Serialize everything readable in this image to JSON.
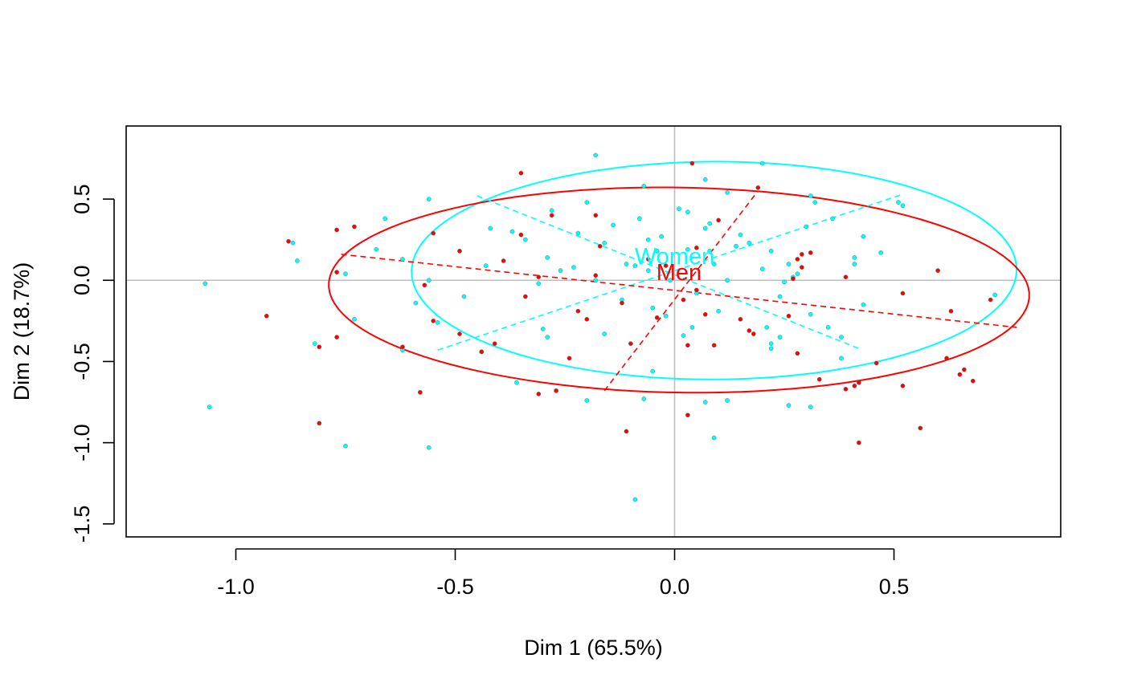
{
  "chart_data": {
    "type": "scatter",
    "title": "",
    "xlabel": "Dim 1 (65.5%)",
    "ylabel": "Dim 2 (18.7%)",
    "xlim": [
      -1.25,
      0.88
    ],
    "ylim": [
      -1.58,
      0.95
    ],
    "x_ticks": [
      -1.0,
      -0.5,
      0.0,
      0.5
    ],
    "x_tick_labels": [
      "-1.0",
      "-0.5",
      "0.0",
      "0.5"
    ],
    "y_ticks": [
      -1.5,
      -1.0,
      -0.5,
      0.0,
      0.5
    ],
    "y_tick_labels": [
      "-1.5",
      "-1.0",
      "-0.5",
      "0.0",
      "0.5"
    ],
    "grid": false,
    "reference_lines": {
      "x": 0,
      "y": 0,
      "color": "#bebebe"
    },
    "groups": [
      {
        "name": "Women",
        "color": "#00ffff",
        "label_position": [
          0.0,
          0.15
        ],
        "ellipse": {
          "center": [
            0.09,
            0.06
          ],
          "semi_major": 0.69,
          "semi_minor": 0.67,
          "angle_deg": 9
        },
        "axis_segments": [
          [
            [
              -0.54,
              -0.43
            ],
            [
              0.52,
              0.53
            ]
          ],
          [
            [
              -0.45,
              0.52
            ],
            [
              0.42,
              -0.42
            ]
          ]
        ],
        "points": [
          [
            -1.07,
            -0.02
          ],
          [
            -1.06,
            -0.78
          ],
          [
            -0.86,
            0.12
          ],
          [
            -0.87,
            0.23
          ],
          [
            -0.75,
            0.04
          ],
          [
            -0.82,
            -0.39
          ],
          [
            -0.75,
            -1.02
          ],
          [
            -0.73,
            -0.24
          ],
          [
            -0.68,
            0.19
          ],
          [
            -0.66,
            0.38
          ],
          [
            -0.62,
            0.13
          ],
          [
            -0.62,
            -0.43
          ],
          [
            -0.59,
            -0.14
          ],
          [
            -0.56,
            0.0
          ],
          [
            -0.56,
            -1.03
          ],
          [
            -0.56,
            0.5
          ],
          [
            -0.54,
            -0.26
          ],
          [
            -0.48,
            -0.1
          ],
          [
            -0.44,
            -0.44
          ],
          [
            -0.43,
            0.09
          ],
          [
            -0.42,
            0.32
          ],
          [
            -0.37,
            0.3
          ],
          [
            -0.36,
            -0.63
          ],
          [
            -0.34,
            0.25
          ],
          [
            -0.31,
            -0.02
          ],
          [
            -0.3,
            -0.3
          ],
          [
            -0.29,
            0.14
          ],
          [
            -0.29,
            -0.35
          ],
          [
            -0.28,
            0.43
          ],
          [
            -0.26,
            0.06
          ],
          [
            -0.23,
            0.08
          ],
          [
            -0.22,
            0.29
          ],
          [
            -0.2,
            0.48
          ],
          [
            -0.2,
            -0.74
          ],
          [
            -0.18,
            0.77
          ],
          [
            -0.18,
            0.0
          ],
          [
            -0.16,
            0.23
          ],
          [
            -0.16,
            -0.33
          ],
          [
            -0.14,
            0.34
          ],
          [
            -0.12,
            -0.12
          ],
          [
            -0.11,
            0.1
          ],
          [
            -0.09,
            0.09
          ],
          [
            -0.09,
            -1.35
          ],
          [
            -0.08,
            0.38
          ],
          [
            -0.07,
            0.58
          ],
          [
            -0.07,
            -0.73
          ],
          [
            -0.06,
            0.06
          ],
          [
            -0.06,
            0.25
          ],
          [
            -0.05,
            -0.17
          ],
          [
            -0.05,
            -0.56
          ],
          [
            -0.04,
            0.18
          ],
          [
            -0.03,
            0.27
          ],
          [
            -0.02,
            -0.22
          ],
          [
            -0.01,
            0.0
          ],
          [
            0.01,
            0.44
          ],
          [
            0.02,
            -0.34
          ],
          [
            0.03,
            0.42
          ],
          [
            0.03,
            0.19
          ],
          [
            0.04,
            -0.29
          ],
          [
            0.05,
            -0.08
          ],
          [
            0.07,
            0.62
          ],
          [
            0.07,
            0.32
          ],
          [
            0.07,
            -0.75
          ],
          [
            0.08,
            0.35
          ],
          [
            0.08,
            0.18
          ],
          [
            0.09,
            -0.97
          ],
          [
            0.09,
            0.1
          ],
          [
            0.1,
            -0.19
          ],
          [
            0.12,
            0.0
          ],
          [
            0.12,
            -0.74
          ],
          [
            0.12,
            0.54
          ],
          [
            0.14,
            0.21
          ],
          [
            0.15,
            0.28
          ],
          [
            0.17,
            0.23
          ],
          [
            0.2,
            0.72
          ],
          [
            0.2,
            0.07
          ],
          [
            0.21,
            -0.29
          ],
          [
            0.22,
            0.18
          ],
          [
            0.22,
            -0.39
          ],
          [
            0.22,
            -0.42
          ],
          [
            0.24,
            -0.35
          ],
          [
            0.24,
            -0.1
          ],
          [
            0.25,
            -0.01
          ],
          [
            0.26,
            -0.77
          ],
          [
            0.26,
            0.1
          ],
          [
            0.27,
            0.02
          ],
          [
            0.28,
            0.04
          ],
          [
            0.3,
            0.33
          ],
          [
            0.31,
            0.52
          ],
          [
            0.31,
            -0.21
          ],
          [
            0.31,
            -0.78
          ],
          [
            0.32,
            0.48
          ],
          [
            0.35,
            -0.29
          ],
          [
            0.36,
            0.38
          ],
          [
            0.38,
            -0.35
          ],
          [
            0.38,
            -0.48
          ],
          [
            0.41,
            0.14
          ],
          [
            0.41,
            0.1
          ],
          [
            0.43,
            0.27
          ],
          [
            0.43,
            -0.15
          ],
          [
            0.47,
            0.17
          ],
          [
            0.51,
            0.48
          ],
          [
            0.52,
            0.46
          ],
          [
            0.73,
            -0.09
          ]
        ]
      },
      {
        "name": "Men",
        "color": "#ff0000",
        "label_position": [
          0.01,
          0.05
        ],
        "ellipse": {
          "center": [
            0.01,
            -0.06
          ],
          "semi_major": 0.8,
          "semi_minor": 0.63,
          "angle_deg": -6
        },
        "axis_segments": [
          [
            [
              -0.76,
              0.16
            ],
            [
              0.78,
              -0.29
            ]
          ],
          [
            [
              -0.16,
              -0.68
            ],
            [
              0.19,
              0.55
            ]
          ]
        ],
        "points": [
          [
            -0.93,
            -0.22
          ],
          [
            -0.88,
            0.24
          ],
          [
            -0.81,
            -0.41
          ],
          [
            -0.81,
            -0.88
          ],
          [
            -0.77,
            0.05
          ],
          [
            -0.77,
            0.31
          ],
          [
            -0.77,
            -0.35
          ],
          [
            -0.73,
            0.33
          ],
          [
            -0.62,
            -0.41
          ],
          [
            -0.58,
            -0.69
          ],
          [
            -0.57,
            -0.03
          ],
          [
            -0.55,
            -0.25
          ],
          [
            -0.55,
            0.29
          ],
          [
            -0.49,
            -0.33
          ],
          [
            -0.49,
            0.18
          ],
          [
            -0.44,
            -0.44
          ],
          [
            -0.41,
            -0.39
          ],
          [
            -0.39,
            0.12
          ],
          [
            -0.35,
            0.66
          ],
          [
            -0.35,
            0.28
          ],
          [
            -0.34,
            -0.1
          ],
          [
            -0.31,
            0.02
          ],
          [
            -0.31,
            -0.7
          ],
          [
            -0.28,
            0.4
          ],
          [
            -0.27,
            -0.68
          ],
          [
            -0.24,
            -0.48
          ],
          [
            -0.22,
            -0.19
          ],
          [
            -0.2,
            -0.24
          ],
          [
            -0.18,
            0.4
          ],
          [
            -0.18,
            0.03
          ],
          [
            -0.17,
            0.21
          ],
          [
            -0.12,
            -0.14
          ],
          [
            -0.11,
            -0.93
          ],
          [
            -0.1,
            -0.39
          ],
          [
            -0.06,
            0.13
          ],
          [
            -0.04,
            -0.23
          ],
          [
            -0.02,
            0.09
          ],
          [
            0.02,
            -0.12
          ],
          [
            0.03,
            -0.83
          ],
          [
            0.03,
            -0.4
          ],
          [
            0.04,
            0.72
          ],
          [
            0.05,
            0.2
          ],
          [
            0.05,
            -0.06
          ],
          [
            0.07,
            -0.21
          ],
          [
            0.09,
            -0.4
          ],
          [
            0.1,
            0.37
          ],
          [
            0.15,
            -0.24
          ],
          [
            0.17,
            -0.31
          ],
          [
            0.18,
            -0.33
          ],
          [
            0.19,
            0.57
          ],
          [
            0.26,
            -0.22
          ],
          [
            0.27,
            0.01
          ],
          [
            0.28,
            0.13
          ],
          [
            0.28,
            -0.45
          ],
          [
            0.29,
            0.16
          ],
          [
            0.29,
            0.08
          ],
          [
            0.31,
            0.17
          ],
          [
            0.33,
            -0.61
          ],
          [
            0.39,
            -0.67
          ],
          [
            0.39,
            0.02
          ],
          [
            0.41,
            -0.65
          ],
          [
            0.42,
            -1.0
          ],
          [
            0.42,
            -0.63
          ],
          [
            0.46,
            -0.51
          ],
          [
            0.52,
            -0.08
          ],
          [
            0.52,
            -0.65
          ],
          [
            0.56,
            -0.91
          ],
          [
            0.6,
            0.06
          ],
          [
            0.62,
            -0.48
          ],
          [
            0.63,
            -0.19
          ],
          [
            0.65,
            -0.58
          ],
          [
            0.66,
            -0.55
          ],
          [
            0.68,
            -0.62
          ],
          [
            0.72,
            -0.12
          ]
        ]
      }
    ]
  }
}
